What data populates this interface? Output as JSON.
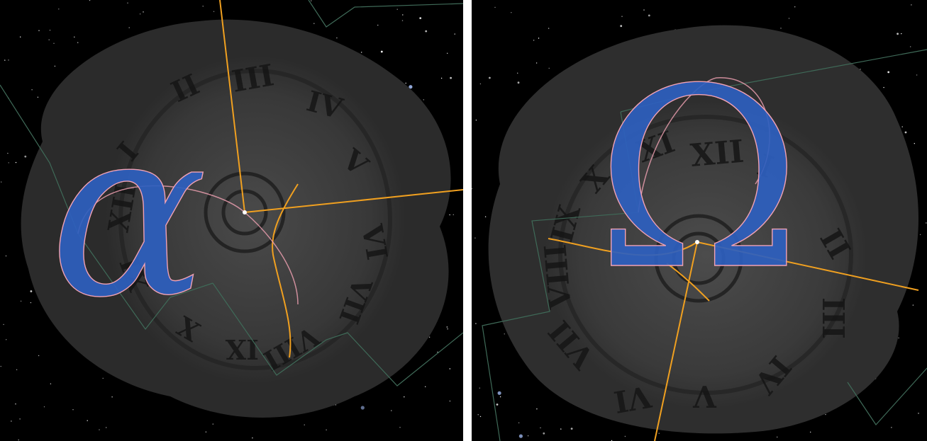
{
  "panels": [
    {
      "id": "left",
      "symbol": "α",
      "numerals": [
        "III",
        "II",
        "IV",
        "I",
        "V",
        "XII",
        "VI",
        "XI",
        "VII",
        "X",
        "VIII",
        "IX"
      ],
      "colors": {
        "symbol": "#2e5fbf",
        "symbol_outline": "#f2a2b4",
        "meridian_lines": "#f0a020",
        "boundaries": "#3f6a58",
        "clock": "#3a3a3a"
      }
    },
    {
      "id": "right",
      "symbol": "Ω",
      "numerals": [
        "XII",
        "XI",
        "X",
        "IX",
        "I",
        "II",
        "III",
        "VIII",
        "VII",
        "IV",
        "VI",
        "V"
      ],
      "colors": {
        "symbol": "#2e5fbf",
        "symbol_outline": "#f2a2b4",
        "meridian_lines": "#f0a020",
        "boundaries": "#3f6a58",
        "clock": "#3a3a3a"
      }
    }
  ]
}
